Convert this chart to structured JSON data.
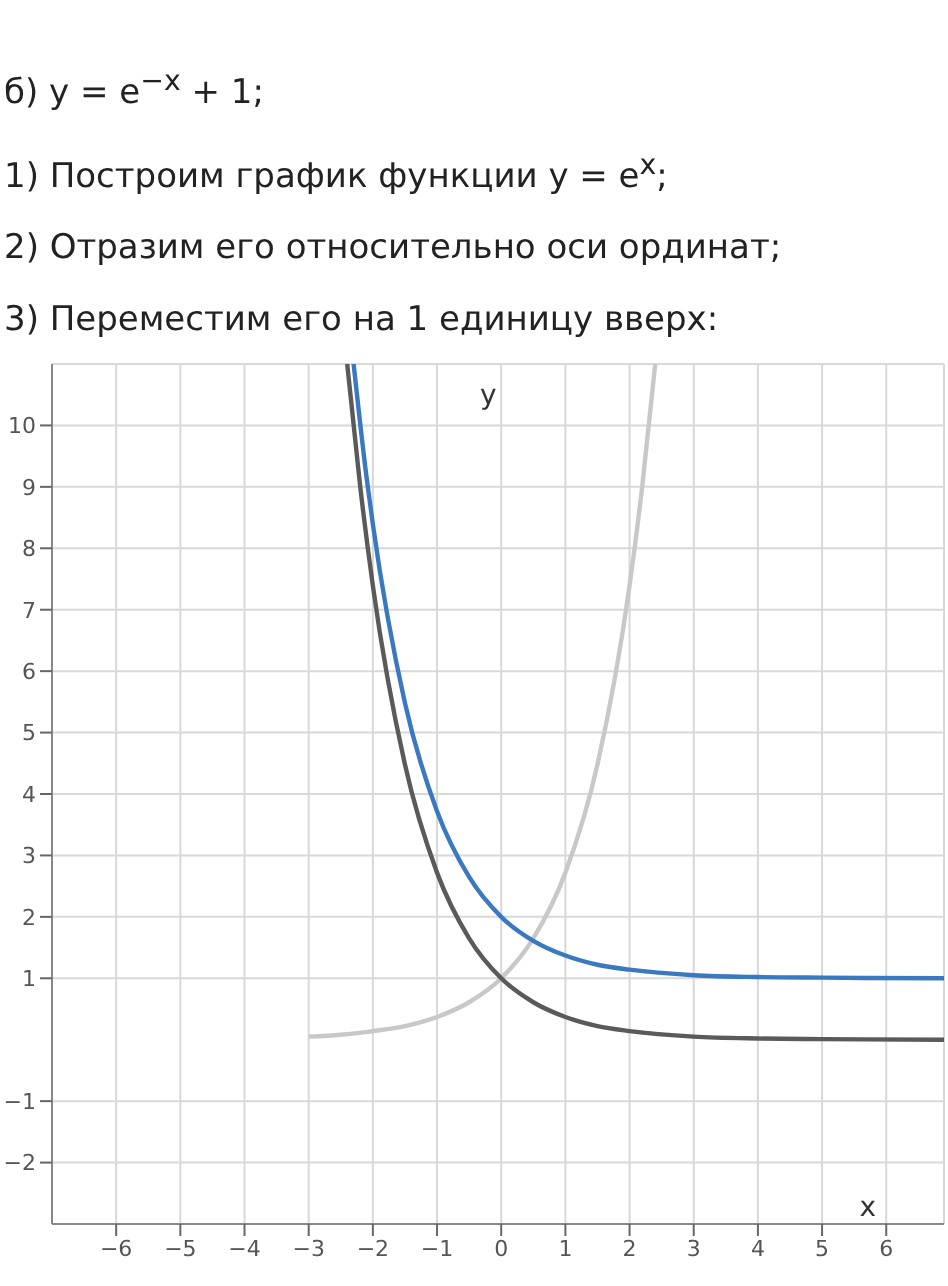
{
  "chart_data": {
    "type": "line",
    "title": "б) y = e$^{−x}$ + 1;",
    "annotations": [
      "1) Построим график функции y = e$^{x}$;",
      "2) Отразим его относительно оси ординат;",
      "3) Переместим его на 1 единицу вверх:"
    ],
    "xlabel": "x",
    "ylabel": "y",
    "series": [
      {
        "color": "#c8c8c8",
        "x": [
          -3,
          -2.5,
          -2,
          -1.5,
          -1,
          -0.5,
          0,
          0.5,
          1,
          1.5,
          2,
          2.2,
          2.4
        ],
        "values": [
          0.05,
          0.08,
          0.14,
          0.22,
          0.37,
          0.61,
          1,
          1.65,
          2.72,
          4.48,
          7.39,
          9.03,
          11
        ]
      },
      {
        "color": "#5a5a5a",
        "x": [
          -2.4,
          -2.2,
          -2,
          -1.5,
          -1,
          -0.5,
          0,
          0.5,
          1,
          1.5,
          2,
          3,
          4,
          5,
          6.9
        ],
        "values": [
          11,
          9.03,
          7.39,
          4.48,
          2.72,
          1.65,
          1,
          0.61,
          0.37,
          0.22,
          0.14,
          0.05,
          0.02,
          0.01,
          0
        ]
      },
      {
        "color": "#3a78c0",
        "x": [
          -2.3,
          -2.1,
          -2,
          -1.5,
          -1,
          -0.5,
          0,
          0.5,
          1,
          1.5,
          2,
          3,
          4,
          5,
          6.9
        ],
        "values": [
          11,
          9.17,
          8.39,
          5.48,
          3.72,
          2.65,
          2,
          1.61,
          1.37,
          1.22,
          1.14,
          1.05,
          1.02,
          1.01,
          1
        ]
      }
    ],
    "marker": "none",
    "line_style": "solid",
    "grid": true,
    "xlim": [
      -7,
      6.9
    ],
    "ylim": [
      -3,
      11
    ],
    "xticks": [
      -6,
      -5,
      -4,
      -3,
      -2,
      -1,
      0,
      1,
      2,
      3,
      4,
      5,
      6
    ],
    "yticks": [
      -2,
      -1,
      1,
      2,
      3,
      4,
      5,
      6,
      7,
      8,
      9,
      10
    ]
  }
}
